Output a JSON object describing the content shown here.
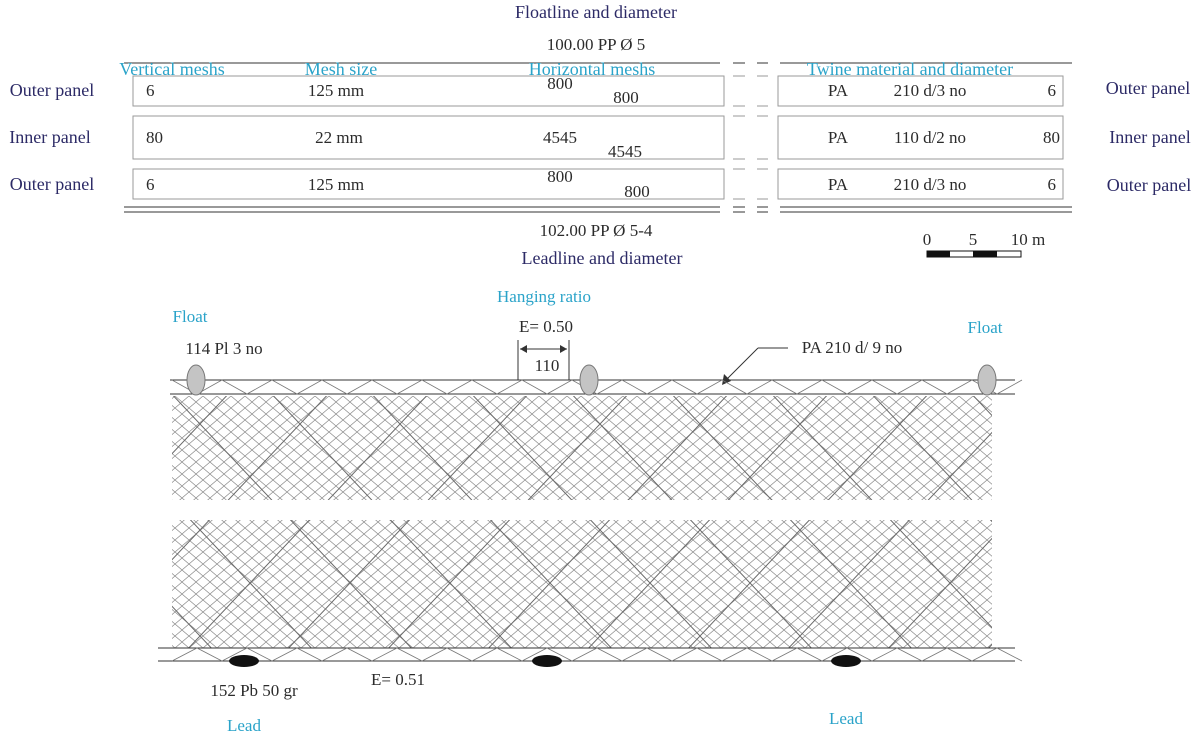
{
  "spec": {
    "floatline_title": "Floatline and diameter",
    "floatline_value": "100.00 PP Ø 5",
    "leadline_value": "102.00 PP Ø 5-4",
    "leadline_title": "Leadline and diameter",
    "headers": {
      "vertical_meshes": "Vertical meshs",
      "mesh_size": "Mesh size",
      "horizontal_meshes": "Horizontal meshs",
      "twine": "Twine material and diameter"
    },
    "panels": [
      {
        "label": "Outer panel",
        "vertical": "6",
        "mesh_size": "125 mm",
        "horiz_top": "800",
        "horiz_bottom": "800",
        "material": "PA",
        "twine": "210 d/3 no",
        "right_count": "6",
        "label_right": "Outer panel"
      },
      {
        "label": "Inner panel",
        "vertical": "80",
        "mesh_size": "22 mm",
        "horiz_top": "4545",
        "horiz_bottom": "4545",
        "material": "PA",
        "twine": "110 d/2 no",
        "right_count": "80",
        "label_right": "Inner panel"
      },
      {
        "label": "Outer panel",
        "vertical": "6",
        "mesh_size": "125 mm",
        "horiz_top": "800",
        "horiz_bottom": "800",
        "material": "PA",
        "twine": "210 d/3 no",
        "right_count": "6",
        "label_right": "Outer panel"
      }
    ],
    "scale_bar": {
      "ticks": [
        "0",
        "5",
        "10 m"
      ]
    }
  },
  "net": {
    "hanging_ratio_title": "Hanging ratio",
    "hanging_ratio_top": "E= 0.50",
    "hanging_length": "110",
    "float_left": "Float",
    "float_right": "Float",
    "float_spec": "114 Pl 3 no",
    "twine_callout": "PA 210 d/ 9 no",
    "lead_spec": "152 Pb 50 gr",
    "hanging_ratio_bottom": "E= 0.51",
    "lead_left": "Lead",
    "lead_right": "Lead"
  },
  "colors": {
    "label_text": "#2c2a66",
    "header_text": "#2aa3c9",
    "float_fill": "#c4c4c4",
    "lead_fill": "#111111"
  }
}
